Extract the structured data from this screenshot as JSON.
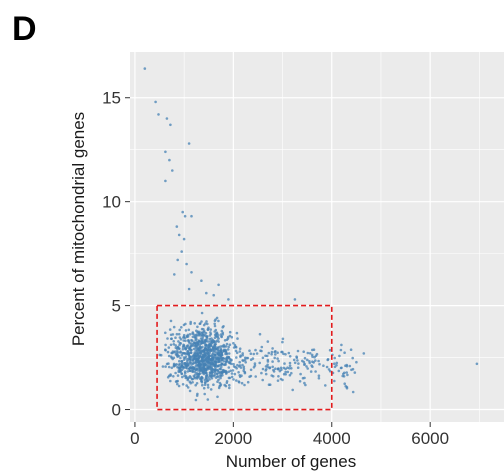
{
  "panel_label": "D",
  "chart_data": {
    "type": "scatter",
    "title": "",
    "xlabel": "Number of genes",
    "ylabel": "Percent of mitochondrial genes",
    "xlim": [
      -100,
      7500
    ],
    "ylim": [
      -0.6,
      17.2
    ],
    "x_ticks": [
      0,
      2000,
      4000,
      6000
    ],
    "x_tick_labels": [
      "0",
      "2000",
      "4000",
      "6000"
    ],
    "y_ticks": [
      0,
      5,
      10,
      15
    ],
    "y_tick_labels": [
      "0",
      "5",
      "10",
      "15"
    ],
    "grid": true,
    "panel_background": "#ebebeb",
    "grid_color": "#ffffff",
    "point_color": "#4682b4",
    "highlight_box": {
      "x0": 450,
      "x1": 4000,
      "y0": 0,
      "y1": 5,
      "color": "#e31a1c",
      "style": "dashed"
    },
    "series": [
      {
        "points": [
          [
            200,
            16.4
          ],
          [
            420,
            14.8
          ],
          [
            480,
            14.2
          ],
          [
            650,
            14.0
          ],
          [
            720,
            13.7
          ],
          [
            1100,
            12.8
          ],
          [
            620,
            12.4
          ],
          [
            700,
            12.0
          ],
          [
            620,
            11.0
          ],
          [
            760,
            11.5
          ],
          [
            970,
            9.5
          ],
          [
            1020,
            9.3
          ],
          [
            1150,
            9.3
          ],
          [
            850,
            8.8
          ],
          [
            900,
            8.4
          ],
          [
            1000,
            8.2
          ],
          [
            950,
            7.6
          ],
          [
            870,
            7.2
          ],
          [
            1050,
            7.0
          ],
          [
            1150,
            6.6
          ],
          [
            800,
            6.5
          ],
          [
            1350,
            6.2
          ],
          [
            1700,
            6.0
          ],
          [
            1100,
            5.8
          ],
          [
            1450,
            5.6
          ],
          [
            1600,
            5.5
          ],
          [
            1900,
            5.3
          ],
          [
            3250,
            5.3
          ],
          [
            6950,
            2.2
          ],
          [
            4650,
            2.7
          ],
          [
            4250,
            1.6
          ]
        ],
        "cluster": {
          "count": 1150,
          "seed": 7,
          "center": [
            1350,
            2.6
          ],
          "x_spread": 650,
          "y_spread": 1.3,
          "tail_to": 4500
        }
      }
    ]
  }
}
